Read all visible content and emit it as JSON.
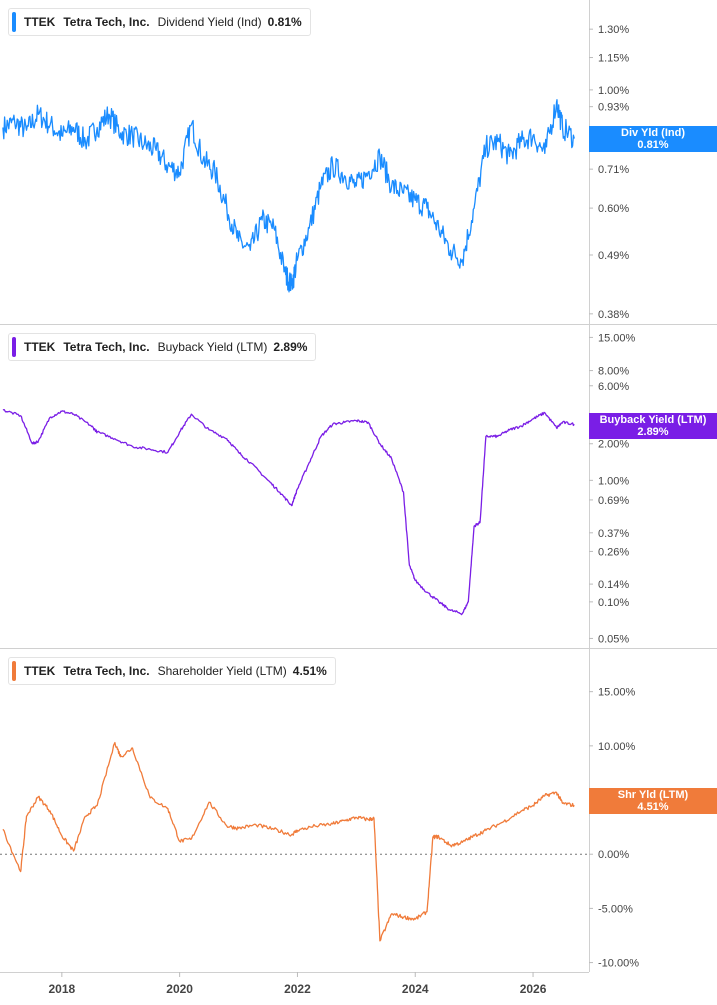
{
  "chart_data": [
    {
      "type": "line",
      "ticker": "TTEK",
      "company": "Tetra Tech, Inc.",
      "metric": "Dividend Yield (Ind)",
      "value": "0.81%",
      "badge_label": "Div Yld (Ind)",
      "badge_value": "0.81%",
      "color": "#1a8cff",
      "scale": "log",
      "ylim": [
        0.37,
        1.4
      ],
      "y_ticks": [
        "1.30%",
        "1.15%",
        "1.00%",
        "0.93%",
        "0.71%",
        "0.60%",
        "0.49%",
        "0.38%"
      ],
      "x": [
        2017.0,
        2017.2,
        2017.4,
        2017.6,
        2017.8,
        2018.0,
        2018.2,
        2018.4,
        2018.6,
        2018.8,
        2019.0,
        2019.2,
        2019.4,
        2019.6,
        2019.8,
        2020.0,
        2020.2,
        2020.4,
        2020.6,
        2020.8,
        2021.0,
        2021.2,
        2021.4,
        2021.6,
        2021.8,
        2021.9,
        2022.0,
        2022.2,
        2022.4,
        2022.6,
        2022.8,
        2023.0,
        2023.2,
        2023.4,
        2023.6,
        2023.8,
        2024.0,
        2024.2,
        2024.4,
        2024.6,
        2024.8,
        2025.0,
        2025.2,
        2025.4,
        2025.6,
        2025.8,
        2026.0,
        2026.2,
        2026.4,
        2026.5,
        2026.7
      ],
      "y": [
        0.85,
        0.87,
        0.84,
        0.9,
        0.86,
        0.82,
        0.85,
        0.8,
        0.85,
        0.9,
        0.83,
        0.82,
        0.79,
        0.77,
        0.72,
        0.7,
        0.86,
        0.74,
        0.7,
        0.6,
        0.52,
        0.5,
        0.57,
        0.55,
        0.45,
        0.43,
        0.48,
        0.55,
        0.66,
        0.72,
        0.69,
        0.66,
        0.7,
        0.75,
        0.66,
        0.64,
        0.62,
        0.6,
        0.55,
        0.5,
        0.48,
        0.6,
        0.78,
        0.8,
        0.75,
        0.8,
        0.82,
        0.76,
        0.95,
        0.85,
        0.81
      ]
    },
    {
      "type": "line",
      "ticker": "TTEK",
      "company": "Tetra Tech, Inc.",
      "metric": "Buyback Yield (LTM)",
      "value": "2.89%",
      "badge_label": "Buyback Yield (LTM)",
      "badge_value": "2.89%",
      "color": "#7a1ee6",
      "scale": "log",
      "ylim": [
        0.045,
        16
      ],
      "y_ticks": [
        "15.00%",
        "8.00%",
        "6.00%",
        "2.00%",
        "1.00%",
        "0.69%",
        "0.37%",
        "0.26%",
        "0.14%",
        "0.10%",
        "0.05%"
      ],
      "x": [
        2017.0,
        2017.3,
        2017.5,
        2017.6,
        2017.8,
        2018.0,
        2018.2,
        2018.5,
        2018.6,
        2018.9,
        2019.2,
        2019.5,
        2019.8,
        2020.0,
        2020.2,
        2020.5,
        2020.8,
        2021.0,
        2021.2,
        2021.5,
        2021.7,
        2021.9,
        2022.0,
        2022.2,
        2022.4,
        2022.6,
        2022.8,
        2023.0,
        2023.2,
        2023.4,
        2023.6,
        2023.8,
        2023.9,
        2024.0,
        2024.2,
        2024.4,
        2024.6,
        2024.8,
        2024.9,
        2025.0,
        2025.1,
        2025.2,
        2025.4,
        2025.6,
        2025.8,
        2026.0,
        2026.2,
        2026.4,
        2026.5,
        2026.7
      ],
      "y": [
        3.8,
        3.4,
        2.0,
        2.1,
        3.3,
        3.7,
        3.5,
        2.8,
        2.5,
        2.2,
        1.9,
        1.8,
        1.7,
        2.5,
        3.5,
        2.6,
        2.2,
        1.7,
        1.4,
        1.0,
        0.8,
        0.62,
        0.85,
        1.4,
        2.3,
        2.9,
        3.0,
        3.1,
        3.0,
        2.0,
        1.5,
        0.8,
        0.2,
        0.15,
        0.12,
        0.1,
        0.085,
        0.08,
        0.1,
        0.42,
        0.45,
        2.3,
        2.3,
        2.6,
        2.8,
        3.2,
        3.6,
        2.7,
        3.0,
        2.89
      ]
    },
    {
      "type": "line",
      "ticker": "TTEK",
      "company": "Tetra Tech, Inc.",
      "metric": "Shareholder Yield (LTM)",
      "value": "4.51%",
      "badge_label": "Shr Yld (LTM)",
      "badge_value": "4.51%",
      "color": "#f07b3a",
      "scale": "linear",
      "ylim": [
        -10.5,
        17
      ],
      "zero_line": true,
      "y_ticks": [
        "15.00%",
        "10.00%",
        "5.00%",
        "0.00%",
        "-5.00%",
        "-10.00%"
      ],
      "y_tick_values": [
        15,
        10,
        5,
        0,
        -5,
        -10
      ],
      "x": [
        2017.0,
        2017.3,
        2017.4,
        2017.6,
        2017.8,
        2018.0,
        2018.2,
        2018.4,
        2018.6,
        2018.9,
        2019.0,
        2019.2,
        2019.5,
        2019.8,
        2020.0,
        2020.2,
        2020.5,
        2020.8,
        2021.0,
        2021.3,
        2021.6,
        2021.9,
        2022.0,
        2022.3,
        2022.6,
        2022.8,
        2023.0,
        2023.2,
        2023.3,
        2023.4,
        2023.6,
        2023.8,
        2024.0,
        2024.2,
        2024.3,
        2024.4,
        2024.6,
        2024.8,
        2025.0,
        2025.2,
        2025.5,
        2025.8,
        2026.0,
        2026.2,
        2026.4,
        2026.5,
        2026.7
      ],
      "y": [
        2.3,
        -1.6,
        3.5,
        5.3,
        4.0,
        1.7,
        0.3,
        3.5,
        4.5,
        10.3,
        9.0,
        9.8,
        5.2,
        4.2,
        1.2,
        1.4,
        4.8,
        2.6,
        2.4,
        2.7,
        2.3,
        1.8,
        2.2,
        2.6,
        2.8,
        3.1,
        3.4,
        3.2,
        3.3,
        -8.0,
        -5.5,
        -5.8,
        -6.0,
        -5.3,
        1.6,
        1.6,
        0.8,
        1.1,
        1.7,
        2.2,
        3.0,
        4.0,
        4.5,
        5.4,
        5.7,
        4.7,
        4.51
      ]
    }
  ],
  "x_axis": {
    "ticks": [
      "2018",
      "2020",
      "2022",
      "2024",
      "2026"
    ],
    "tick_values": [
      2018,
      2020,
      2022,
      2024,
      2026
    ],
    "range": [
      2016.95,
      2026.95
    ]
  }
}
